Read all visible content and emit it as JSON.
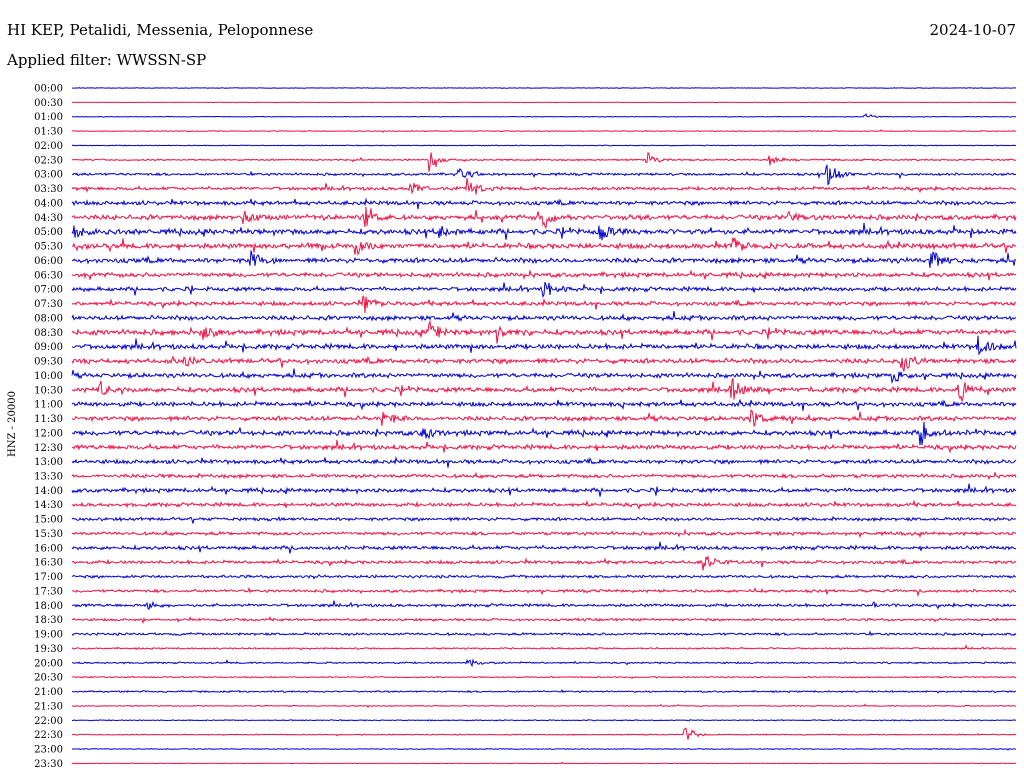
{
  "header": {
    "station": "HI KEP, Petalidi, Messenia, Peloponnese",
    "date": "2024-10-07",
    "filter": "Applied filter: WWSSN-SP"
  },
  "chart_data": {
    "type": "line",
    "ylabel": "HNZ - 20000",
    "tick_labels": [
      "00:00",
      "00:30",
      "01:00",
      "01:30",
      "02:00",
      "02:30",
      "03:00",
      "03:30",
      "04:00",
      "04:30",
      "05:00",
      "05:30",
      "06:00",
      "06:30",
      "07:00",
      "07:30",
      "08:00",
      "08:30",
      "09:00",
      "09:30",
      "10:00",
      "10:30",
      "11:00",
      "11:30",
      "12:00",
      "12:30",
      "13:00",
      "13:30",
      "14:00",
      "14:30",
      "15:00",
      "15:30",
      "16:00",
      "16:30",
      "17:00",
      "17:30",
      "18:00",
      "18:30",
      "19:00",
      "19:30",
      "20:00",
      "20:30",
      "21:00",
      "21:30",
      "22:00",
      "22:30",
      "23:00",
      "23:30"
    ],
    "trace_colors": [
      "#0000cc",
      "#ee1144"
    ],
    "noise_level": [
      0.3,
      0.2,
      0.3,
      0.4,
      0.4,
      0.8,
      1.2,
      1.6,
      2.0,
      2.4,
      2.6,
      2.6,
      2.4,
      2.2,
      2.0,
      2.0,
      2.2,
      2.6,
      2.4,
      2.4,
      2.2,
      2.4,
      2.2,
      2.2,
      2.4,
      2.2,
      2.0,
      1.8,
      2.0,
      1.8,
      1.6,
      1.6,
      1.8,
      1.6,
      1.4,
      1.4,
      1.4,
      1.2,
      1.2,
      0.8,
      0.8,
      0.6,
      0.8,
      0.5,
      0.5,
      0.5,
      0.4,
      0.3
    ],
    "events": [
      {
        "row": 2,
        "time": 0.84,
        "amp": 3
      },
      {
        "row": 5,
        "time": 0.38,
        "amp": 14
      },
      {
        "row": 5,
        "time": 0.61,
        "amp": 8
      },
      {
        "row": 5,
        "time": 0.74,
        "amp": 5
      },
      {
        "row": 6,
        "time": 0.41,
        "amp": 8
      },
      {
        "row": 6,
        "time": 0.8,
        "amp": 22
      },
      {
        "row": 7,
        "time": 0.36,
        "amp": 7
      },
      {
        "row": 7,
        "time": 0.42,
        "amp": 14
      },
      {
        "row": 9,
        "time": 0.18,
        "amp": 10
      },
      {
        "row": 9,
        "time": 0.31,
        "amp": 12
      },
      {
        "row": 9,
        "time": 0.5,
        "amp": 12
      },
      {
        "row": 9,
        "time": 0.76,
        "amp": 8
      },
      {
        "row": 10,
        "time": 0.0,
        "amp": 10
      },
      {
        "row": 10,
        "time": 0.39,
        "amp": 6
      },
      {
        "row": 10,
        "time": 0.56,
        "amp": 14
      },
      {
        "row": 11,
        "time": 0.3,
        "amp": 12
      },
      {
        "row": 11,
        "time": 0.7,
        "amp": 12
      },
      {
        "row": 12,
        "time": 0.19,
        "amp": 12
      },
      {
        "row": 12,
        "time": 0.91,
        "amp": 12
      },
      {
        "row": 14,
        "time": 0.5,
        "amp": 12
      },
      {
        "row": 15,
        "time": 0.31,
        "amp": 10
      },
      {
        "row": 17,
        "time": 0.14,
        "amp": 8
      },
      {
        "row": 17,
        "time": 0.38,
        "amp": 12
      },
      {
        "row": 17,
        "time": 0.45,
        "amp": 10
      },
      {
        "row": 18,
        "time": 0.96,
        "amp": 10
      },
      {
        "row": 19,
        "time": 0.12,
        "amp": 10
      },
      {
        "row": 19,
        "time": 0.88,
        "amp": 16
      },
      {
        "row": 20,
        "time": 0.87,
        "amp": 10
      },
      {
        "row": 21,
        "time": 0.03,
        "amp": 10
      },
      {
        "row": 21,
        "time": 0.7,
        "amp": 14
      },
      {
        "row": 21,
        "time": 0.94,
        "amp": 18
      },
      {
        "row": 23,
        "time": 0.33,
        "amp": 8
      },
      {
        "row": 23,
        "time": 0.72,
        "amp": 12
      },
      {
        "row": 24,
        "time": 0.37,
        "amp": 10
      },
      {
        "row": 24,
        "time": 0.9,
        "amp": 14
      },
      {
        "row": 33,
        "time": 0.67,
        "amp": 8
      },
      {
        "row": 36,
        "time": 0.08,
        "amp": 5
      },
      {
        "row": 36,
        "time": 0.85,
        "amp": 4
      },
      {
        "row": 40,
        "time": 0.42,
        "amp": 5
      },
      {
        "row": 45,
        "time": 0.65,
        "amp": 10
      }
    ]
  }
}
